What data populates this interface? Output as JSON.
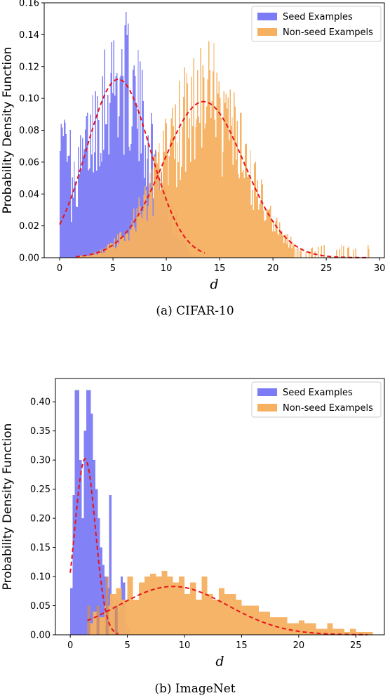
{
  "chart_data": [
    {
      "type": "histogram",
      "caption": "(a)  CIFAR-10",
      "xlabel": "d",
      "ylabel": "Probability Density Function",
      "xlim": [
        -1.45,
        30.45
      ],
      "ylim": [
        0,
        0.16
      ],
      "xticks": [
        0,
        5,
        10,
        15,
        20,
        25,
        30
      ],
      "yticks": [
        0.0,
        0.02,
        0.04,
        0.06,
        0.08,
        0.1,
        0.12,
        0.14,
        0.16
      ],
      "ytick_labels": [
        "0.00",
        "0.02",
        "0.04",
        "0.06",
        "0.08",
        "0.10",
        "0.12",
        "0.14",
        "0.16"
      ],
      "legend_position": "top-right",
      "bins": 300,
      "series": [
        {
          "name": "Seed Examples",
          "color": "#7b7bf6",
          "range": [
            0,
            14
          ],
          "fit": {
            "kind": "gaussian",
            "mu": 5.5,
            "sigma": 3.0,
            "peak": 0.112,
            "cutoff": 11.5
          },
          "noise": 0.42
        },
        {
          "name": "Non-seed Exampels",
          "color": "#f5b060",
          "range": [
            1.5,
            29
          ],
          "fit": {
            "kind": "gaussian",
            "mu": 13.5,
            "sigma": 3.8,
            "peak": 0.098
          },
          "noise": 0.45
        }
      ],
      "fit_lines": [
        {
          "color": "#e8141a",
          "style": "dashed",
          "x_range": [
            0,
            13.6
          ],
          "series": 0
        },
        {
          "color": "#e8141a",
          "style": "dashed",
          "x_range": [
            1.5,
            29
          ],
          "series": 1
        }
      ]
    },
    {
      "type": "histogram",
      "caption": "(b)  ImageNet",
      "xlabel": "d",
      "ylabel": "Probability Density Function",
      "xlim": [
        -1.3,
        27.5
      ],
      "ylim": [
        0,
        0.44
      ],
      "xticks": [
        0,
        5,
        10,
        15,
        20,
        25
      ],
      "yticks": [
        0.0,
        0.05,
        0.1,
        0.15,
        0.2,
        0.25,
        0.3,
        0.35,
        0.4
      ],
      "ytick_labels": [
        "0.00",
        "0.05",
        "0.10",
        "0.15",
        "0.20",
        "0.25",
        "0.30",
        "0.35",
        "0.40"
      ],
      "legend_position": "top-right",
      "series": [
        {
          "name": "Seed Examples",
          "color": "#7b7bf6",
          "bin_start": 0,
          "bin_width": 0.2,
          "values": [
            0.08,
            0.24,
            0.42,
            0.42,
            0.3,
            0.2,
            0.35,
            0.42,
            0.42,
            0.38,
            0.3,
            0.25,
            0.2,
            0.15,
            0.12,
            0.1,
            0.08,
            0.24,
            0.06,
            0.05,
            0.06,
            0.04,
            0.1,
            0.09,
            0.02,
            0.01
          ]
        },
        {
          "name": "Non-seed Exampels",
          "color": "#f5b060",
          "bin_start": 1.5,
          "bin_width": 0.5,
          "values": [
            0.02,
            0.04,
            0.03,
            0.05,
            0.07,
            0.08,
            0.06,
            0.1,
            0.06,
            0.09,
            0.1,
            0.105,
            0.1,
            0.11,
            0.1,
            0.09,
            0.1,
            0.07,
            0.09,
            0.06,
            0.1,
            0.07,
            0.06,
            0.08,
            0.07,
            0.07,
            0.06,
            0.05,
            0.05,
            0.05,
            0.04,
            0.04,
            0.03,
            0.03,
            0.03,
            0.02,
            0.02,
            0.025,
            0.02,
            0.02,
            0.01,
            0.01,
            0.02,
            0.01,
            0.01,
            0.005,
            0.01,
            0.005,
            0.005,
            0.005
          ],
          "secondary_values": [
            0.05,
            0.0,
            0.05,
            0.0,
            0.1,
            0.0,
            0.05,
            0.0
          ]
        }
      ],
      "fit_lines": [
        {
          "color": "#e8141a",
          "style": "dashed",
          "kind": "gaussian",
          "mu": 1.3,
          "sigma": 0.9,
          "peak": 0.302,
          "x_range": [
            0,
            4.2
          ]
        },
        {
          "color": "#e8141a",
          "style": "dashed",
          "kind": "gaussian",
          "mu": 9.0,
          "sigma": 4.8,
          "peak": 0.083,
          "x_range": [
            1.5,
            26.0
          ]
        }
      ]
    }
  ]
}
